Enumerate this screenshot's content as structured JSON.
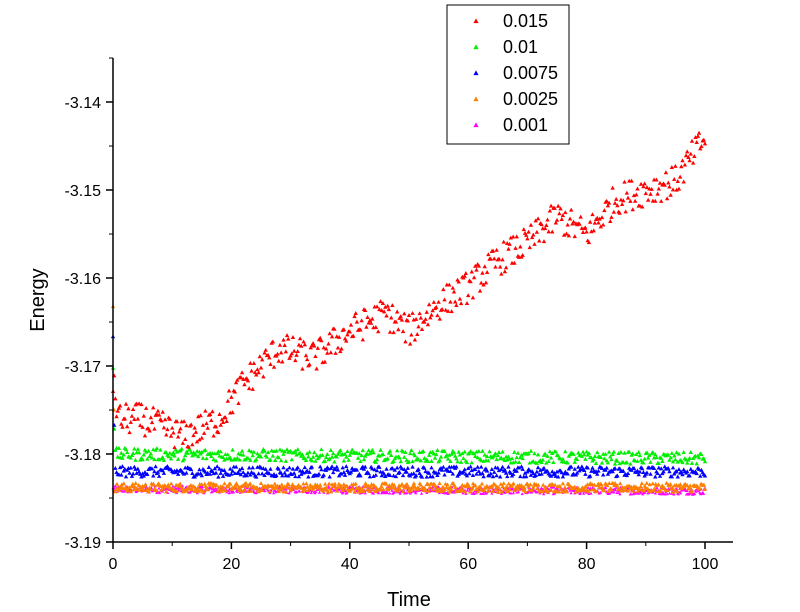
{
  "chart_data": {
    "type": "scatter",
    "title": "",
    "xlabel": "Time",
    "ylabel": "Energy",
    "xlim": [
      0,
      100
    ],
    "ylim": [
      -3.19,
      -3.135
    ],
    "x_ticks": [
      0,
      20,
      40,
      60,
      80,
      100
    ],
    "x_tick_labels": [
      "0",
      "20",
      "40",
      "60",
      "80",
      "100"
    ],
    "y_ticks": [
      -3.14,
      -3.15,
      -3.16,
      -3.17,
      -3.18,
      -3.19
    ],
    "y_tick_labels": [
      "-3.14",
      "-3.15",
      "-3.16",
      "-3.17",
      "-3.18",
      "-3.19"
    ],
    "grid": false,
    "legend_position": "top-right",
    "series": [
      {
        "name": "0.015",
        "color": "#ff0000",
        "points_per_unit": 5,
        "trend": [
          [
            0,
            -3.172
          ],
          [
            1,
            -3.176
          ],
          [
            5,
            -3.176
          ],
          [
            12,
            -3.178
          ],
          [
            18,
            -3.176
          ],
          [
            22,
            -3.172
          ],
          [
            28,
            -3.168
          ],
          [
            34,
            -3.169
          ],
          [
            40,
            -3.166
          ],
          [
            46,
            -3.164
          ],
          [
            50,
            -3.166
          ],
          [
            55,
            -3.163
          ],
          [
            60,
            -3.161
          ],
          [
            65,
            -3.158
          ],
          [
            70,
            -3.156
          ],
          [
            75,
            -3.153
          ],
          [
            80,
            -3.155
          ],
          [
            85,
            -3.151
          ],
          [
            90,
            -3.15
          ],
          [
            95,
            -3.149
          ],
          [
            100,
            -3.144
          ]
        ],
        "spread": 0.0018
      },
      {
        "name": "0.01",
        "color": "#00ee00",
        "points_per_unit": 5,
        "trend": [
          [
            0,
            -3.17
          ],
          [
            0.3,
            -3.18
          ],
          [
            100,
            -3.1805
          ]
        ],
        "spread": 0.0007
      },
      {
        "name": "0.0075",
        "color": "#0000ff",
        "points_per_unit": 5,
        "trend": [
          [
            0,
            -3.167
          ],
          [
            0.3,
            -3.182
          ],
          [
            100,
            -3.182
          ]
        ],
        "spread": 0.0006
      },
      {
        "name": "0.0025",
        "color": "#ff8000",
        "points_per_unit": 6,
        "trend": [
          [
            0,
            -3.163
          ],
          [
            0.3,
            -3.1838
          ],
          [
            100,
            -3.1838
          ]
        ],
        "spread": 0.0005
      },
      {
        "name": "0.001",
        "color": "#ff00ff",
        "points_per_unit": 8,
        "trend": [
          [
            0,
            -3.184
          ],
          [
            100,
            -3.1842
          ]
        ],
        "spread": 0.0004
      }
    ]
  }
}
